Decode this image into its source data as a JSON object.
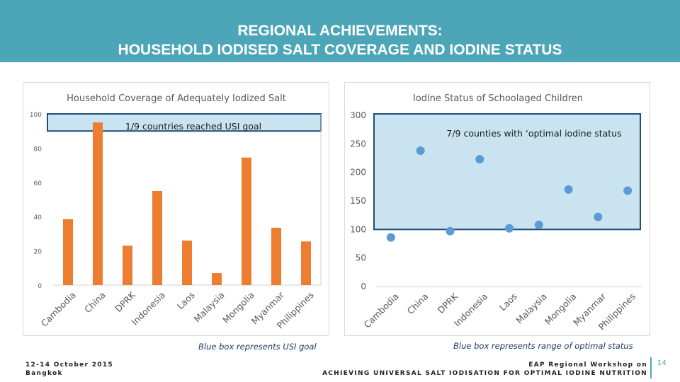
{
  "header": {
    "title_line1": "REGIONAL ACHIEVEMENTS:",
    "title_line2": "HOUSEHOLD IODISED SALT COVERAGE AND IODINE STATUS"
  },
  "chart_data": [
    {
      "type": "bar",
      "title": "Household Coverage of Adequately Iodized Salt",
      "categories": [
        "Cambodia",
        "China",
        "DPRK",
        "Indonesia",
        "Laos",
        "Malaysia",
        "Mongolia",
        "Myanmar",
        "Philippines"
      ],
      "values": [
        38.5,
        95,
        23,
        55,
        26,
        7,
        74.5,
        33.5,
        25.5
      ],
      "ylim": [
        0,
        100
      ],
      "yticks": [
        "0",
        "20",
        "40",
        "60",
        "80",
        "100"
      ],
      "bar_color": "#ed7d31",
      "highlight_box": {
        "label": "1/9 countries reached USI goal",
        "range": [
          90,
          100
        ],
        "color": "#c9e4f0",
        "border": "#1f4e79"
      }
    },
    {
      "type": "scatter",
      "title": "Iodine Status of Schoolaged Children",
      "categories": [
        "Cambodia",
        "China",
        "DPRK",
        "Indonesia",
        "Laos",
        "Malaysia",
        "Mongolia",
        "Myanmar",
        "Philippines"
      ],
      "values": [
        86,
        238,
        97,
        223,
        102,
        108,
        170,
        122,
        168
      ],
      "ylim": [
        0,
        300
      ],
      "yticks": [
        "0",
        "50",
        "100",
        "150",
        "200",
        "250",
        "300"
      ],
      "marker_color": "#5b9bd5",
      "highlight_box": {
        "label": "7/9 counties with ‘optimal iodine status",
        "range": [
          100,
          300
        ],
        "color": "#c9e4f0",
        "border": "#1f4e79"
      }
    }
  ],
  "captions": {
    "left": "Blue box represents USI goal",
    "right": "Blue box represents range of optimal status"
  },
  "footer": {
    "date": "12-14 October 2015",
    "city": "Bangkok",
    "event_line1": "EAP Regional Workshop on",
    "event_line2": "ACHIEVING UNIVERSAL SALT IODISATION FOR OPTIMAL IODINE NUTRITION",
    "page_number": "14"
  }
}
